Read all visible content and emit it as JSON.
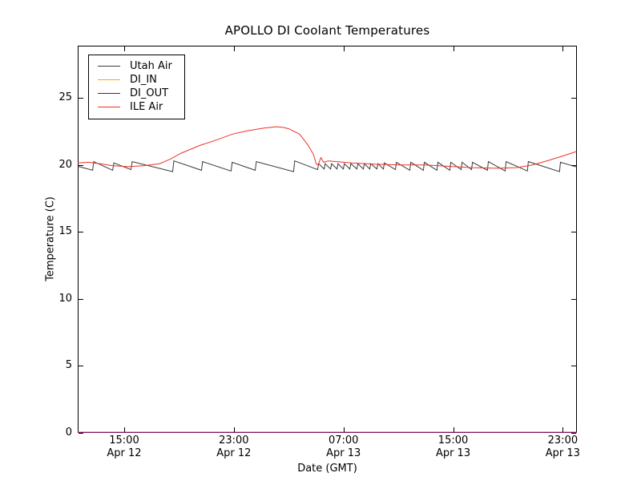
{
  "figure": {
    "background": "#ffffff",
    "text_color": "#000000",
    "spine_color": "#000000"
  },
  "chart_data": {
    "type": "line",
    "title": "APOLLO DI Coolant Temperatures",
    "xlabel": "Date (GMT)",
    "ylabel": "Temperature (C)",
    "x_unit": "hours since Apr 12 00:00 GMT",
    "xlim": [
      11.61,
      48.03
    ],
    "ylim": [
      0,
      28.9
    ],
    "grid": false,
    "legend_position": "upper-left",
    "tick_direction": "in",
    "y_ticks": [
      0,
      5,
      10,
      15,
      20,
      25
    ],
    "x_ticks": [
      {
        "value": 15,
        "time": "15:00",
        "date": "Apr 12"
      },
      {
        "value": 23,
        "time": "23:00",
        "date": "Apr 12"
      },
      {
        "value": 31,
        "time": "07:00",
        "date": "Apr 13"
      },
      {
        "value": 39,
        "time": "15:00",
        "date": "Apr 13"
      },
      {
        "value": 47,
        "time": "23:00",
        "date": "Apr 13"
      }
    ],
    "series": [
      {
        "name": "Utah Air",
        "color": "#3a3a3a",
        "points": [
          [
            11.61,
            19.9
          ],
          [
            12.7,
            19.6
          ],
          [
            12.78,
            20.25
          ],
          [
            14.16,
            19.6
          ],
          [
            14.24,
            20.15
          ],
          [
            15.5,
            19.65
          ],
          [
            15.58,
            20.25
          ],
          [
            18.54,
            19.5
          ],
          [
            18.62,
            20.3
          ],
          [
            20.64,
            19.6
          ],
          [
            20.72,
            20.25
          ],
          [
            22.8,
            19.55
          ],
          [
            22.88,
            20.2
          ],
          [
            24.56,
            19.6
          ],
          [
            24.64,
            20.25
          ],
          [
            27.36,
            19.5
          ],
          [
            27.44,
            20.3
          ],
          [
            29.11,
            19.65
          ],
          [
            29.19,
            20.1
          ],
          [
            29.59,
            19.7
          ],
          [
            29.66,
            20.1
          ],
          [
            30.06,
            19.7
          ],
          [
            30.13,
            20.1
          ],
          [
            30.53,
            19.7
          ],
          [
            30.6,
            20.1
          ],
          [
            30.99,
            19.7
          ],
          [
            31.06,
            20.1
          ],
          [
            31.46,
            19.7
          ],
          [
            31.53,
            20.1
          ],
          [
            31.98,
            19.7
          ],
          [
            32.05,
            20.1
          ],
          [
            32.45,
            19.7
          ],
          [
            32.52,
            20.1
          ],
          [
            32.92,
            19.7
          ],
          [
            32.99,
            20.1
          ],
          [
            33.44,
            19.7
          ],
          [
            33.51,
            20.1
          ],
          [
            33.91,
            19.7
          ],
          [
            33.98,
            20.15
          ],
          [
            34.79,
            19.65
          ],
          [
            34.86,
            20.2
          ],
          [
            35.84,
            19.6
          ],
          [
            35.91,
            20.2
          ],
          [
            36.83,
            19.6
          ],
          [
            36.9,
            20.2
          ],
          [
            37.82,
            19.6
          ],
          [
            37.89,
            20.2
          ],
          [
            38.76,
            19.6
          ],
          [
            38.83,
            20.2
          ],
          [
            39.58,
            19.65
          ],
          [
            39.65,
            20.2
          ],
          [
            40.34,
            19.65
          ],
          [
            40.41,
            20.2
          ],
          [
            41.5,
            19.6
          ],
          [
            41.57,
            20.25
          ],
          [
            42.79,
            19.55
          ],
          [
            42.86,
            20.25
          ],
          [
            44.42,
            19.55
          ],
          [
            44.49,
            20.25
          ],
          [
            46.76,
            19.5
          ],
          [
            46.83,
            20.2
          ],
          [
            48.0,
            19.85
          ]
        ]
      },
      {
        "name": "DI_IN",
        "color": "#ffa500",
        "points": [
          [
            11.61,
            0
          ],
          [
            48.03,
            0
          ]
        ]
      },
      {
        "name": "DI_OUT",
        "color": "#800080",
        "points": [
          [
            11.61,
            0
          ],
          [
            48.03,
            0
          ]
        ]
      },
      {
        "name": "ILE Air",
        "color": "#f03028",
        "points": [
          [
            11.61,
            20.15
          ],
          [
            12.4,
            20.2
          ],
          [
            13.2,
            20.1
          ],
          [
            14.1,
            19.95
          ],
          [
            15.3,
            19.87
          ],
          [
            16.5,
            19.95
          ],
          [
            17.6,
            20.1
          ],
          [
            18.4,
            20.45
          ],
          [
            19.1,
            20.85
          ],
          [
            20.5,
            21.45
          ],
          [
            21.7,
            21.85
          ],
          [
            22.9,
            22.3
          ],
          [
            24.0,
            22.55
          ],
          [
            25.2,
            22.75
          ],
          [
            26.1,
            22.85
          ],
          [
            26.6,
            22.8
          ],
          [
            27.0,
            22.7
          ],
          [
            27.8,
            22.3
          ],
          [
            28.4,
            21.5
          ],
          [
            28.8,
            20.8
          ],
          [
            29.0,
            20.1
          ],
          [
            29.15,
            20.0
          ],
          [
            29.35,
            20.55
          ],
          [
            29.55,
            20.2
          ],
          [
            29.9,
            20.3
          ],
          [
            30.5,
            20.25
          ],
          [
            31.6,
            20.15
          ],
          [
            33.4,
            20.05
          ],
          [
            35.1,
            20.0
          ],
          [
            36.9,
            20.0
          ],
          [
            38.6,
            19.9
          ],
          [
            40.4,
            19.8
          ],
          [
            42.2,
            19.75
          ],
          [
            43.6,
            19.8
          ],
          [
            44.8,
            20.0
          ],
          [
            46.0,
            20.35
          ],
          [
            47.1,
            20.7
          ],
          [
            48.0,
            21.0
          ]
        ]
      }
    ]
  }
}
